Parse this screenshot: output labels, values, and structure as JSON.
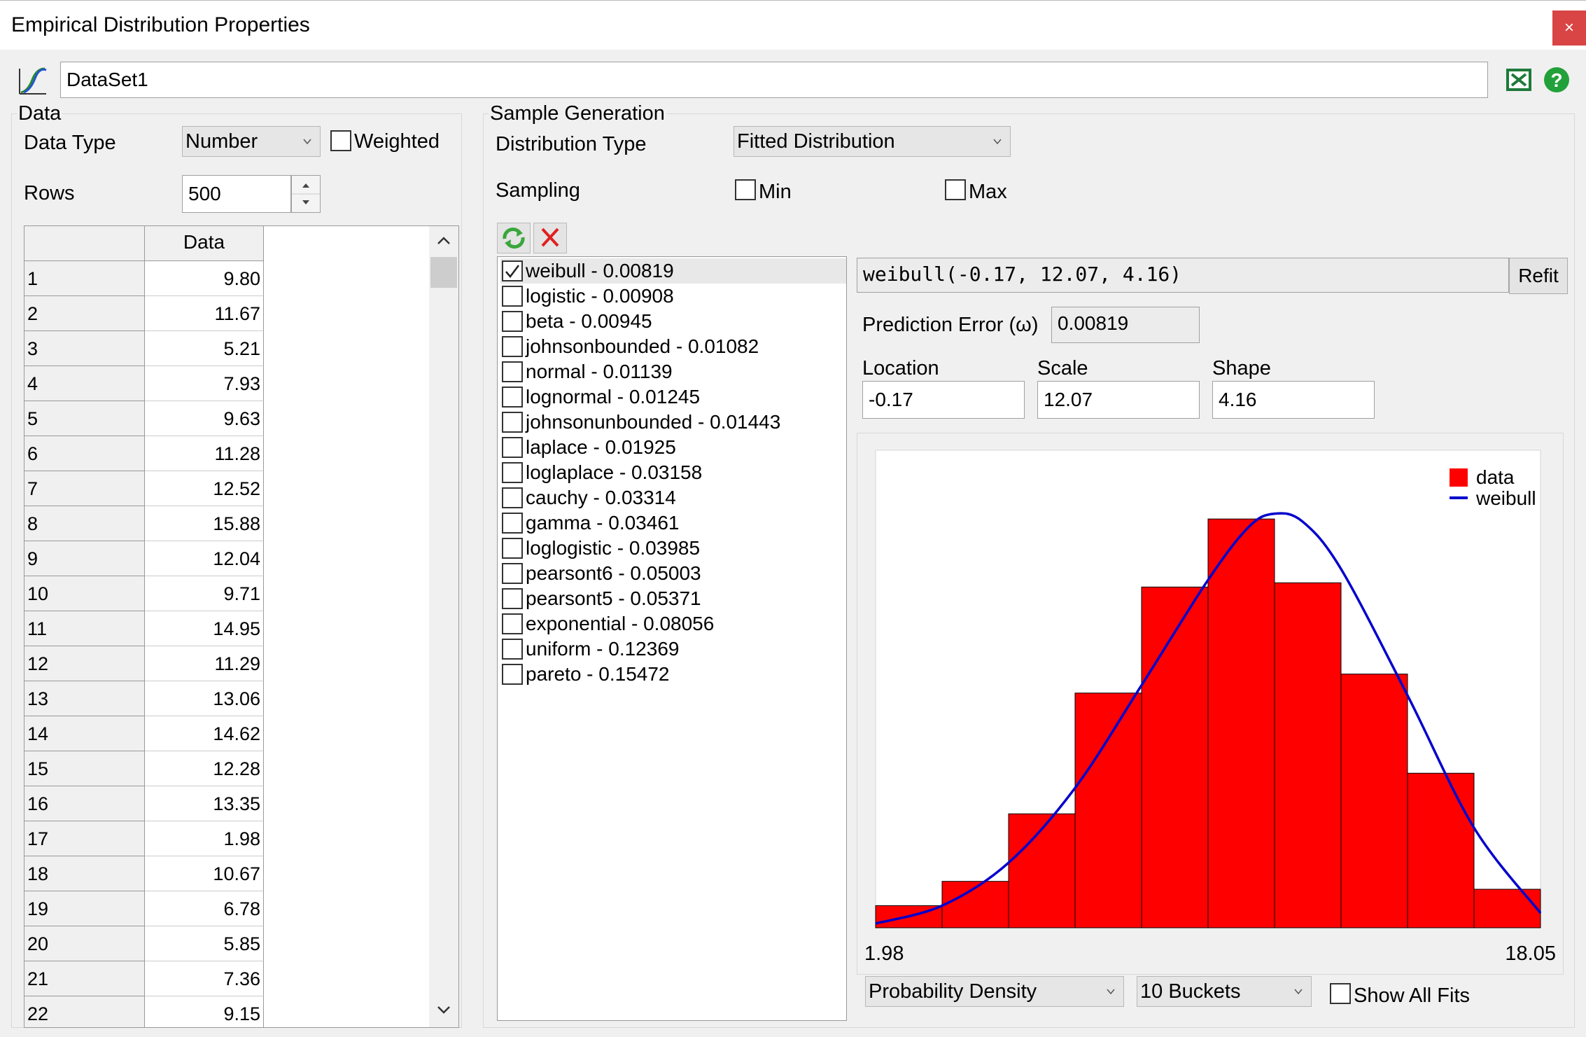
{
  "window": {
    "title": "Empirical Distribution Properties",
    "close_glyph": "×"
  },
  "dataset": {
    "name": "DataSet1"
  },
  "data_panel": {
    "group_label": "Data",
    "data_type_label": "Data Type",
    "data_type_value": "Number",
    "weighted_label": "Weighted",
    "weighted_checked": false,
    "rows_label": "Rows",
    "rows_value": "500",
    "column_header": "Data",
    "rows": [
      {
        "n": "1",
        "v": "9.80"
      },
      {
        "n": "2",
        "v": "11.67"
      },
      {
        "n": "3",
        "v": "5.21"
      },
      {
        "n": "4",
        "v": "7.93"
      },
      {
        "n": "5",
        "v": "9.63"
      },
      {
        "n": "6",
        "v": "11.28"
      },
      {
        "n": "7",
        "v": "12.52"
      },
      {
        "n": "8",
        "v": "15.88"
      },
      {
        "n": "9",
        "v": "12.04"
      },
      {
        "n": "10",
        "v": "9.71"
      },
      {
        "n": "11",
        "v": "14.95"
      },
      {
        "n": "12",
        "v": "11.29"
      },
      {
        "n": "13",
        "v": "13.06"
      },
      {
        "n": "14",
        "v": "14.62"
      },
      {
        "n": "15",
        "v": "12.28"
      },
      {
        "n": "16",
        "v": "13.35"
      },
      {
        "n": "17",
        "v": "1.98"
      },
      {
        "n": "18",
        "v": "10.67"
      },
      {
        "n": "19",
        "v": "6.78"
      },
      {
        "n": "20",
        "v": "5.85"
      },
      {
        "n": "21",
        "v": "7.36"
      },
      {
        "n": "22",
        "v": "9.15"
      }
    ]
  },
  "sample_panel": {
    "group_label": "Sample Generation",
    "distribution_type_label": "Distribution Type",
    "distribution_type_value": "Fitted Distribution",
    "sampling_label": "Sampling",
    "min_label": "Min",
    "max_label": "Max"
  },
  "fits": [
    {
      "label": "weibull - 0.00819",
      "checked": true
    },
    {
      "label": "logistic - 0.00908",
      "checked": false
    },
    {
      "label": "beta - 0.00945",
      "checked": false
    },
    {
      "label": "johnsonbounded - 0.01082",
      "checked": false
    },
    {
      "label": "normal - 0.01139",
      "checked": false
    },
    {
      "label": "lognormal - 0.01245",
      "checked": false
    },
    {
      "label": "johnsonunbounded - 0.01443",
      "checked": false
    },
    {
      "label": "laplace - 0.01925",
      "checked": false
    },
    {
      "label": "loglaplace - 0.03158",
      "checked": false
    },
    {
      "label": "cauchy - 0.03314",
      "checked": false
    },
    {
      "label": "gamma - 0.03461",
      "checked": false
    },
    {
      "label": "loglogistic - 0.03985",
      "checked": false
    },
    {
      "label": "pearsont6 - 0.05003",
      "checked": false
    },
    {
      "label": "pearsont5 - 0.05371",
      "checked": false
    },
    {
      "label": "exponential - 0.08056",
      "checked": false
    },
    {
      "label": "uniform - 0.12369",
      "checked": false
    },
    {
      "label": "pareto - 0.15472",
      "checked": false
    }
  ],
  "fit_detail": {
    "formula": "weibull(-0.17, 12.07, 4.16)",
    "refit_label": "Refit",
    "prediction_error_label": "Prediction Error (ω)",
    "prediction_error_value": "0.00819",
    "location_label": "Location",
    "location_value": "-0.17",
    "scale_label": "Scale",
    "scale_value": "12.07",
    "shape_label": "Shape",
    "shape_value": "4.16"
  },
  "chart_controls": {
    "plot_type_value": "Probability Density",
    "buckets_value": "10 Buckets",
    "show_all_fits_label": "Show All Fits"
  },
  "colors": {
    "bars": "#ff0000",
    "curve": "#0000cc",
    "close": "#d94444"
  },
  "chart_data": {
    "type": "bar",
    "xlim": [
      1.98,
      18.05
    ],
    "x_tick_labels": [
      "1.98",
      "18.05"
    ],
    "bin_values": [
      0.042,
      0.088,
      0.216,
      0.445,
      0.646,
      0.775,
      0.654,
      0.481,
      0.293,
      0.073
    ],
    "bin_count": 10,
    "ylim": [
      0,
      0.9
    ],
    "legend": [
      "data",
      "weibull"
    ],
    "legend_position": "top-right",
    "grid": false,
    "series": [
      {
        "name": "data",
        "kind": "histogram"
      },
      {
        "name": "weibull",
        "kind": "line",
        "x": [
          1.98,
          3.59,
          5.19,
          6.8,
          8.41,
          10.02,
          11.0,
          11.62,
          12.3,
          13.23,
          14.84,
          16.44,
          18.05
        ],
        "y": [
          0.008,
          0.042,
          0.123,
          0.265,
          0.46,
          0.66,
          0.76,
          0.785,
          0.77,
          0.68,
          0.44,
          0.19,
          0.028
        ]
      }
    ]
  }
}
